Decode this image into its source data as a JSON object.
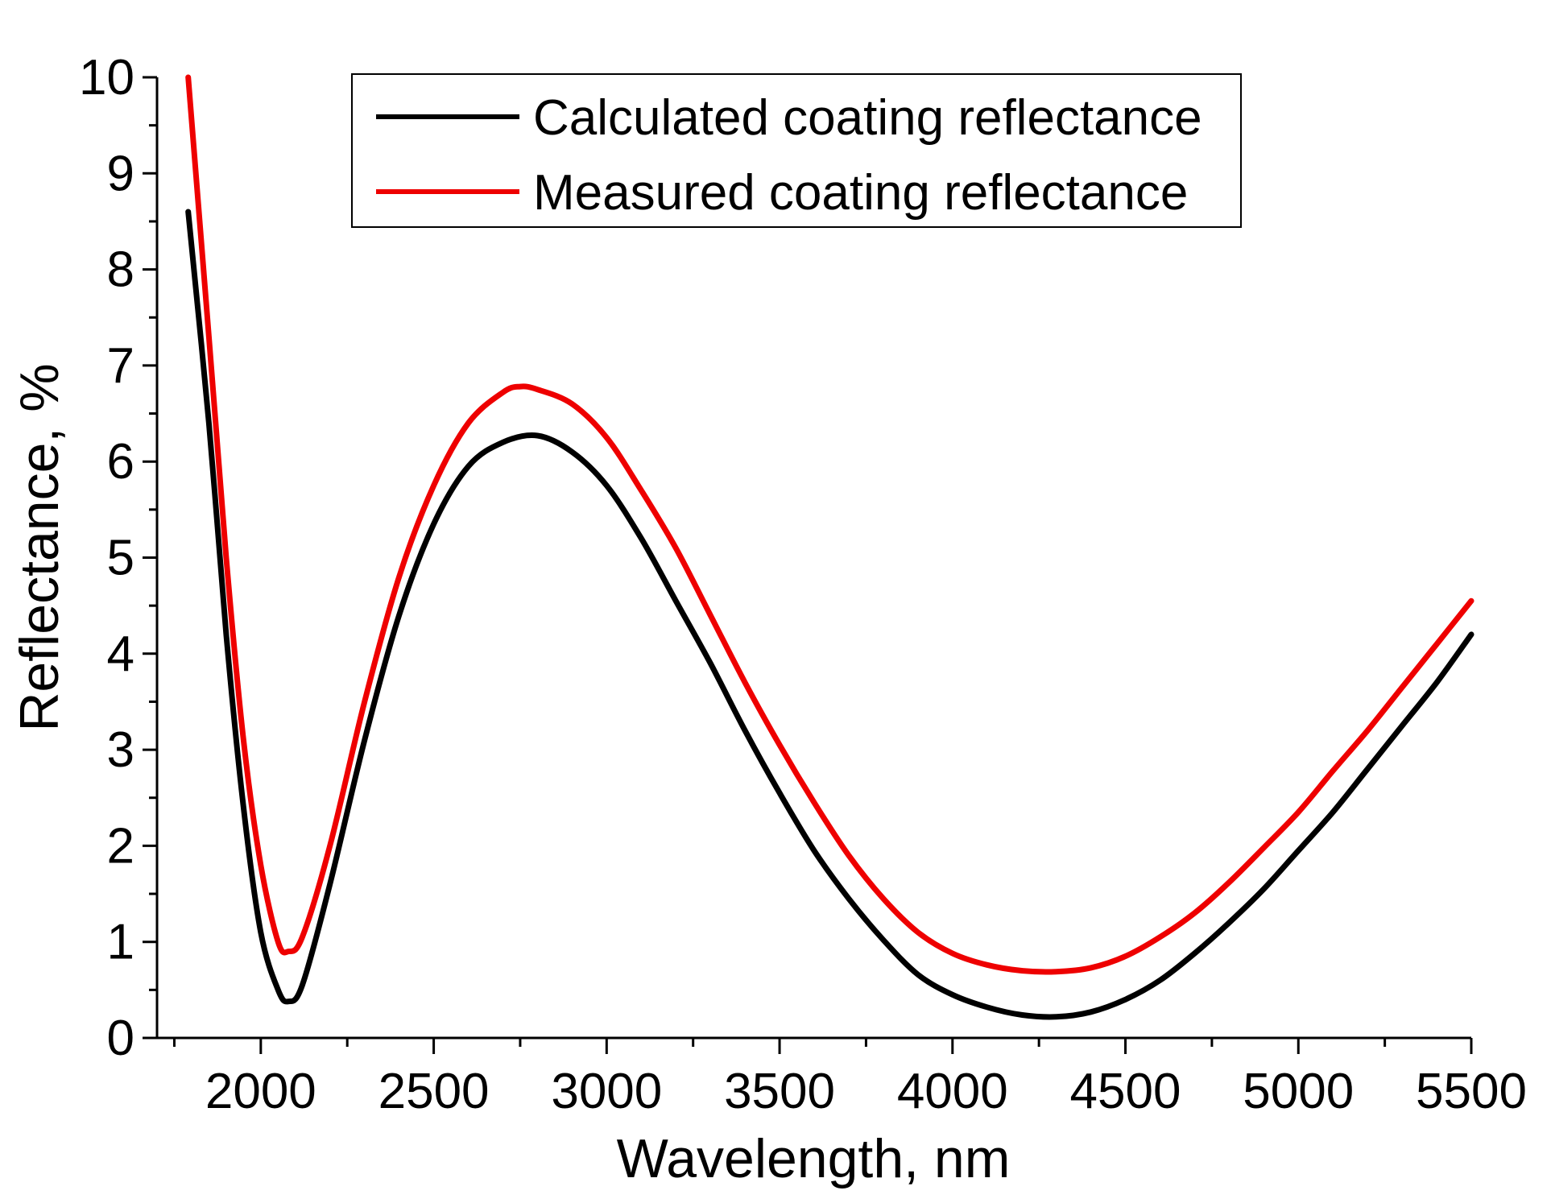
{
  "chart_data": {
    "type": "line",
    "title": "",
    "xlabel": "Wavelength, nm",
    "ylabel": "Reflectance, %",
    "xlim": [
      1700,
      5500
    ],
    "ylim": [
      0,
      10
    ],
    "xticks": [
      2000,
      2500,
      3000,
      3500,
      4000,
      4500,
      5000,
      5500
    ],
    "xtick_labels": [
      "2000",
      "2500",
      "3000",
      "3500",
      "4000",
      "4500",
      "5000",
      "5500"
    ],
    "yticks": [
      0,
      1,
      2,
      3,
      4,
      5,
      6,
      7,
      8,
      9,
      10
    ],
    "ytick_labels": [
      "0",
      "1",
      "2",
      "3",
      "4",
      "5",
      "6",
      "7",
      "8",
      "9",
      "10"
    ],
    "grid": false,
    "legend_position": "top-center",
    "series": [
      {
        "name": "Calculated coating reflectance",
        "color": "#000000",
        "x": [
          1790,
          1850,
          1900,
          1950,
          2000,
          2050,
          2080,
          2120,
          2200,
          2300,
          2400,
          2500,
          2600,
          2700,
          2800,
          2900,
          3000,
          3100,
          3200,
          3300,
          3400,
          3500,
          3600,
          3700,
          3800,
          3900,
          4000,
          4100,
          4200,
          4300,
          4400,
          4500,
          4600,
          4700,
          4800,
          4900,
          5000,
          5100,
          5200,
          5300,
          5400,
          5500
        ],
        "y": [
          8.6,
          6.4,
          4.2,
          2.4,
          1.1,
          0.5,
          0.38,
          0.55,
          1.6,
          3.1,
          4.4,
          5.35,
          5.95,
          6.2,
          6.27,
          6.1,
          5.75,
          5.2,
          4.55,
          3.9,
          3.2,
          2.55,
          1.95,
          1.45,
          1.02,
          0.66,
          0.45,
          0.32,
          0.24,
          0.22,
          0.27,
          0.4,
          0.6,
          0.88,
          1.2,
          1.55,
          1.95,
          2.35,
          2.8,
          3.25,
          3.7,
          4.2
        ]
      },
      {
        "name": "Measured coating reflectance",
        "color": "#ee0000",
        "x": [
          1790,
          1850,
          1900,
          1950,
          2000,
          2050,
          2080,
          2120,
          2200,
          2300,
          2400,
          2500,
          2600,
          2700,
          2750,
          2800,
          2900,
          3000,
          3100,
          3200,
          3300,
          3400,
          3500,
          3600,
          3700,
          3800,
          3900,
          4000,
          4100,
          4200,
          4300,
          4400,
          4500,
          4600,
          4700,
          4800,
          4900,
          5000,
          5100,
          5200,
          5300,
          5400,
          5500
        ],
        "y": [
          10.0,
          7.3,
          5.0,
          3.1,
          1.8,
          1.0,
          0.9,
          1.05,
          2.0,
          3.5,
          4.8,
          5.75,
          6.4,
          6.72,
          6.78,
          6.75,
          6.6,
          6.25,
          5.7,
          5.1,
          4.4,
          3.7,
          3.05,
          2.45,
          1.9,
          1.45,
          1.1,
          0.88,
          0.76,
          0.7,
          0.69,
          0.73,
          0.85,
          1.05,
          1.3,
          1.62,
          1.98,
          2.35,
          2.78,
          3.2,
          3.65,
          4.1,
          4.55
        ]
      }
    ]
  }
}
